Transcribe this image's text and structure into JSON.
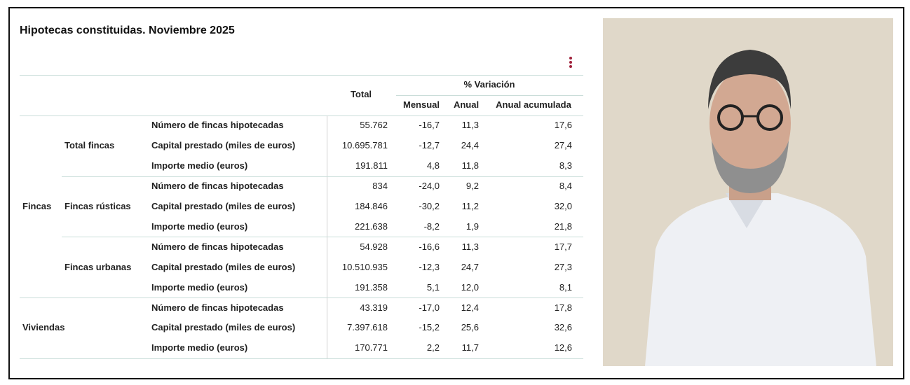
{
  "title": "Hipotecas constituidas. Noviembre 2025",
  "table": {
    "header": {
      "total": "Total",
      "variation": "% Variación",
      "columns": [
        "Mensual",
        "Anual",
        "Anual acumulada"
      ]
    },
    "sections": [
      {
        "label": "Fincas",
        "subsections": [
          {
            "label": "Total fincas",
            "rows": [
              {
                "concept": "Número de fincas hipotecadas",
                "cells": [
                  "55.762",
                  "-16,7",
                  "11,3",
                  "17,6"
                ]
              },
              {
                "concept": "Capital prestado (miles de euros)",
                "cells": [
                  "10.695.781",
                  "-12,7",
                  "24,4",
                  "27,4"
                ]
              },
              {
                "concept": "Importe medio (euros)",
                "cells": [
                  "191.811",
                  "4,8",
                  "11,8",
                  "8,3"
                ]
              }
            ]
          },
          {
            "label": "Fincas rústicas",
            "rows": [
              {
                "concept": "Número de fincas hipotecadas",
                "cells": [
                  "834",
                  "-24,0",
                  "9,2",
                  "8,4"
                ]
              },
              {
                "concept": "Capital prestado (miles de euros)",
                "cells": [
                  "184.846",
                  "-30,2",
                  "11,2",
                  "32,0"
                ]
              },
              {
                "concept": "Importe medio (euros)",
                "cells": [
                  "221.638",
                  "-8,2",
                  "1,9",
                  "21,8"
                ]
              }
            ]
          },
          {
            "label": "Fincas urbanas",
            "rows": [
              {
                "concept": "Número de fincas hipotecadas",
                "cells": [
                  "54.928",
                  "-16,6",
                  "11,3",
                  "17,7"
                ]
              },
              {
                "concept": "Capital prestado (miles de euros)",
                "cells": [
                  "10.510.935",
                  "-12,3",
                  "24,7",
                  "27,3"
                ]
              },
              {
                "concept": "Importe medio (euros)",
                "cells": [
                  "191.358",
                  "5,1",
                  "12,0",
                  "8,1"
                ]
              }
            ]
          }
        ]
      },
      {
        "label": "Viviendas",
        "rows": [
          {
            "concept": "Número de fincas hipotecadas",
            "cells": [
              "43.319",
              "-17,0",
              "12,4",
              "17,8"
            ]
          },
          {
            "concept": "Capital prestado (miles de euros)",
            "cells": [
              "7.397.618",
              "-15,2",
              "25,6",
              "32,6"
            ]
          },
          {
            "concept": "Importe medio (euros)",
            "cells": [
              "170.771",
              "2,2",
              "11,7",
              "12,6"
            ]
          }
        ]
      }
    ]
  }
}
